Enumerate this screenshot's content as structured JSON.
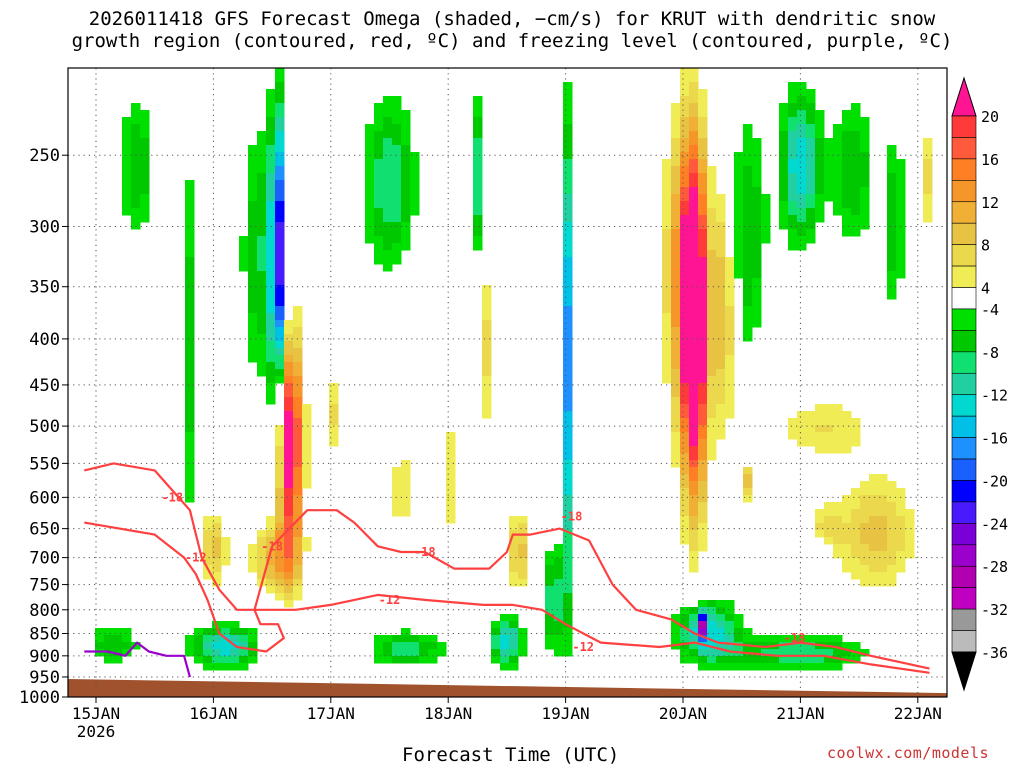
{
  "header": {
    "title_line1": "2026011418 GFS Forecast Omega (shaded, −cm/s) for KRUT with dendritic snow",
    "title_line2": "growth region (contoured, red, ºC) and freezing level (contoured, purple, ºC)"
  },
  "footer": {
    "xlabel": "Forecast Time (UTC)",
    "credit": "coolwx.com/models"
  },
  "colors": {
    "ground": "#a0522d",
    "contour_red": "#ff4040",
    "contour_purple": "#9900cc",
    "grid": "#555555"
  },
  "chart_data": {
    "type": "heatmap",
    "title": "2026011418 GFS Forecast Omega (shaded, −cm/s) for KRUT with dendritic snow growth region (contoured, red, ºC) and freezing level (contoured, purple, ºC)",
    "xlabel": "Forecast Time (UTC)",
    "ylabel": "",
    "y_axis": {
      "scale": "log",
      "range": [
        1000,
        200
      ],
      "ticks": [
        250,
        300,
        350,
        400,
        450,
        500,
        550,
        600,
        650,
        700,
        750,
        800,
        850,
        900,
        950,
        1000
      ]
    },
    "x_axis": {
      "range_days": [
        14.9,
        22.2
      ],
      "ticks": [
        "15JAN",
        "16JAN",
        "17JAN",
        "18JAN",
        "19JAN",
        "20JAN",
        "21JAN",
        "22JAN"
      ],
      "first_tick_year": "2026"
    },
    "grid": true,
    "colorbar": {
      "placement": "right",
      "labels": [
        20,
        16,
        12,
        8,
        4,
        -4,
        -8,
        -12,
        -16,
        -20,
        -24,
        -28,
        -32,
        -36
      ],
      "classes": [
        {
          "min": 20,
          "max": null,
          "color": "#ff1493"
        },
        {
          "min": 18,
          "max": 20,
          "color": "#ff3a3a"
        },
        {
          "min": 16,
          "max": 18,
          "color": "#ff5a3c"
        },
        {
          "min": 14,
          "max": 16,
          "color": "#ff7f24"
        },
        {
          "min": 12,
          "max": 14,
          "color": "#f5962a"
        },
        {
          "min": 10,
          "max": 12,
          "color": "#efb035"
        },
        {
          "min": 8,
          "max": 10,
          "color": "#e8c243"
        },
        {
          "min": 6,
          "max": 8,
          "color": "#ebd84c"
        },
        {
          "min": 4,
          "max": 6,
          "color": "#f0ec55"
        },
        {
          "min": -4,
          "max": 4,
          "color": "#ffffff"
        },
        {
          "min": -6,
          "max": -4,
          "color": "#00e000"
        },
        {
          "min": -8,
          "max": -6,
          "color": "#00c800"
        },
        {
          "min": -10,
          "max": -8,
          "color": "#10e070"
        },
        {
          "min": -12,
          "max": -10,
          "color": "#20d0a0"
        },
        {
          "min": -14,
          "max": -12,
          "color": "#00d8d0"
        },
        {
          "min": -16,
          "max": -14,
          "color": "#00c0e8"
        },
        {
          "min": -18,
          "max": -16,
          "color": "#1e90ff"
        },
        {
          "min": -20,
          "max": -18,
          "color": "#1a60ff"
        },
        {
          "min": -22,
          "max": -20,
          "color": "#0000ff"
        },
        {
          "min": -24,
          "max": -22,
          "color": "#4a1aff"
        },
        {
          "min": -26,
          "max": -24,
          "color": "#7a00d8"
        },
        {
          "min": -28,
          "max": -26,
          "color": "#9b00cc"
        },
        {
          "min": -30,
          "max": -28,
          "color": "#b000b0"
        },
        {
          "min": -32,
          "max": -30,
          "color": "#c000c0"
        },
        {
          "min": -34,
          "max": -32,
          "color": "#999999"
        },
        {
          "min": -36,
          "max": -34,
          "color": "#bbbbbb"
        },
        {
          "min": null,
          "max": -36,
          "color": "#000000"
        }
      ]
    },
    "omega_blobs": [
      {
        "day": 16.65,
        "p_top": 360,
        "p_bot": 760,
        "half_width_days": 0.14,
        "peak": 24
      },
      {
        "day": 16.52,
        "p_top": 620,
        "p_bot": 790,
        "half_width_days": 0.28,
        "peak": 10
      },
      {
        "day": 16.0,
        "p_top": 600,
        "p_bot": 780,
        "half_width_days": 0.15,
        "peak": 9
      },
      {
        "day": 17.0,
        "p_top": 420,
        "p_bot": 560,
        "half_width_days": 0.06,
        "peak": 8
      },
      {
        "day": 17.6,
        "p_top": 480,
        "p_bot": 720,
        "half_width_days": 0.08,
        "peak": 7
      },
      {
        "day": 18.3,
        "p_top": 290,
        "p_bot": 560,
        "half_width_days": 0.08,
        "peak": 8
      },
      {
        "day": 18.6,
        "p_top": 600,
        "p_bot": 790,
        "half_width_days": 0.1,
        "peak": 10
      },
      {
        "day": 18.05,
        "p_top": 430,
        "p_bot": 760,
        "half_width_days": 0.06,
        "peak": 8
      },
      {
        "day": 17.15,
        "p_top": 260,
        "p_bot": 460,
        "half_width_days": 0.05,
        "peak": 6
      },
      {
        "day": 15.45,
        "p_top": 720,
        "p_bot": 800,
        "half_width_days": 0.07,
        "peak": 5
      },
      {
        "day": 20.1,
        "p_top": 220,
        "p_bot": 700,
        "half_width_days": 0.14,
        "peak": 26
      },
      {
        "day": 20.0,
        "p_top": 200,
        "p_bot": 560,
        "half_width_days": 0.22,
        "peak": 12
      },
      {
        "day": 20.35,
        "p_top": 240,
        "p_bot": 560,
        "half_width_days": 0.12,
        "peak": 11
      },
      {
        "day": 21.2,
        "p_top": 450,
        "p_bot": 560,
        "half_width_days": 0.6,
        "peak": 6
      },
      {
        "day": 21.65,
        "p_top": 540,
        "p_bot": 800,
        "half_width_days": 0.45,
        "peak": 9
      },
      {
        "day": 21.2,
        "p_top": 600,
        "p_bot": 740,
        "half_width_days": 0.18,
        "peak": 7
      },
      {
        "day": 20.55,
        "p_top": 540,
        "p_bot": 620,
        "half_width_days": 0.05,
        "peak": 9
      },
      {
        "day": 22.1,
        "p_top": 220,
        "p_bot": 320,
        "half_width_days": 0.08,
        "peak": 7
      },
      {
        "day": 16.55,
        "p_top": 200,
        "p_bot": 560,
        "half_width_days": 0.08,
        "peak": -22
      },
      {
        "day": 16.4,
        "p_top": 200,
        "p_bot": 520,
        "half_width_days": 0.22,
        "peak": -8
      },
      {
        "day": 15.35,
        "p_top": 200,
        "p_bot": 330,
        "half_width_days": 0.2,
        "peak": -8
      },
      {
        "day": 15.8,
        "p_top": 200,
        "p_bot": 820,
        "half_width_days": 0.12,
        "peak": -7
      },
      {
        "day": 16.1,
        "p_top": 820,
        "p_bot": 940,
        "half_width_days": 0.35,
        "peak": -14
      },
      {
        "day": 15.15,
        "p_top": 820,
        "p_bot": 930,
        "half_width_days": 0.3,
        "peak": -8
      },
      {
        "day": 17.5,
        "p_top": 200,
        "p_bot": 360,
        "half_width_days": 0.3,
        "peak": -10
      },
      {
        "day": 17.65,
        "p_top": 830,
        "p_bot": 940,
        "half_width_days": 0.45,
        "peak": -9
      },
      {
        "day": 19.0,
        "p_top": 200,
        "p_bot": 880,
        "half_width_days": 0.05,
        "peak": -20
      },
      {
        "day": 18.9,
        "p_top": 650,
        "p_bot": 940,
        "half_width_days": 0.12,
        "peak": -10
      },
      {
        "day": 18.25,
        "p_top": 200,
        "p_bot": 360,
        "half_width_days": 0.1,
        "peak": -10
      },
      {
        "day": 18.5,
        "p_top": 800,
        "p_bot": 940,
        "half_width_days": 0.18,
        "peak": -14
      },
      {
        "day": 20.2,
        "p_top": 760,
        "p_bot": 940,
        "half_width_days": 0.35,
        "peak": -14
      },
      {
        "day": 20.15,
        "p_top": 800,
        "p_bot": 870,
        "half_width_days": 0.05,
        "peak": -20
      },
      {
        "day": 21.0,
        "p_top": 840,
        "p_bot": 950,
        "half_width_days": 0.75,
        "peak": -10
      },
      {
        "day": 20.55,
        "p_top": 200,
        "p_bot": 470,
        "half_width_days": 0.22,
        "peak": -8
      },
      {
        "day": 21.0,
        "p_top": 200,
        "p_bot": 330,
        "half_width_days": 0.22,
        "peak": -14
      },
      {
        "day": 21.45,
        "p_top": 200,
        "p_bot": 340,
        "half_width_days": 0.25,
        "peak": -8
      },
      {
        "day": 21.8,
        "p_top": 220,
        "p_bot": 400,
        "half_width_days": 0.12,
        "peak": -8
      },
      {
        "day": 21.2,
        "p_top": 650,
        "p_bot": 750,
        "half_width_days": 0.12,
        "peak": -8
      }
    ],
    "contours": [
      {
        "kind": "dendritic",
        "temp_c": -12,
        "points": [
          [
            14.9,
            560
          ],
          [
            15.15,
            550
          ],
          [
            15.5,
            560
          ],
          [
            15.8,
            620
          ],
          [
            15.9,
            700
          ],
          [
            16.05,
            760
          ],
          [
            16.2,
            800
          ],
          [
            16.7,
            800
          ],
          [
            17.0,
            790
          ],
          [
            17.4,
            770
          ],
          [
            17.8,
            780
          ],
          [
            18.3,
            790
          ],
          [
            18.55,
            790
          ],
          [
            18.8,
            800
          ],
          [
            19.0,
            830
          ],
          [
            19.3,
            870
          ],
          [
            19.8,
            880
          ],
          [
            20.1,
            870
          ],
          [
            20.4,
            890
          ],
          [
            20.8,
            900
          ],
          [
            21.2,
            900
          ],
          [
            21.6,
            920
          ],
          [
            22.1,
            940
          ]
        ]
      },
      {
        "kind": "dendritic",
        "temp_c": -18,
        "points": [
          [
            14.9,
            640
          ],
          [
            15.2,
            650
          ],
          [
            15.5,
            660
          ],
          [
            15.75,
            700
          ],
          [
            15.85,
            730
          ],
          [
            15.95,
            780
          ],
          [
            16.05,
            850
          ],
          [
            16.2,
            880
          ],
          [
            16.45,
            890
          ],
          [
            16.6,
            860
          ],
          [
            16.55,
            830
          ],
          [
            16.4,
            830
          ],
          [
            16.35,
            800
          ],
          [
            16.5,
            680
          ],
          [
            16.8,
            620
          ],
          [
            17.05,
            620
          ],
          [
            17.2,
            640
          ],
          [
            17.4,
            680
          ],
          [
            17.6,
            690
          ],
          [
            17.8,
            690
          ],
          [
            18.05,
            720
          ],
          [
            18.35,
            720
          ],
          [
            18.5,
            690
          ],
          [
            18.55,
            660
          ],
          [
            18.7,
            660
          ],
          [
            18.95,
            650
          ],
          [
            19.2,
            670
          ],
          [
            19.4,
            750
          ],
          [
            19.6,
            800
          ],
          [
            19.9,
            820
          ],
          [
            20.1,
            850
          ],
          [
            20.3,
            870
          ],
          [
            20.7,
            880
          ],
          [
            21.0,
            870
          ],
          [
            21.3,
            880
          ],
          [
            21.6,
            900
          ],
          [
            22.1,
            930
          ]
        ]
      },
      {
        "kind": "freezing",
        "temp_c": 0,
        "points": [
          [
            14.9,
            890
          ],
          [
            15.1,
            890
          ],
          [
            15.25,
            900
          ],
          [
            15.35,
            870
          ],
          [
            15.45,
            890
          ],
          [
            15.6,
            900
          ],
          [
            15.75,
            900
          ],
          [
            15.8,
            950
          ]
        ]
      }
    ],
    "contour_labels": [
      {
        "text": "-18",
        "day": 15.65,
        "p": 600
      },
      {
        "text": "-12",
        "day": 15.85,
        "p": 700
      },
      {
        "text": "-18",
        "day": 16.5,
        "p": 680
      },
      {
        "text": "-18",
        "day": 17.8,
        "p": 690
      },
      {
        "text": "-12",
        "day": 17.5,
        "p": 780
      },
      {
        "text": "-18",
        "day": 19.05,
        "p": 630
      },
      {
        "text": "-12",
        "day": 19.15,
        "p": 880
      },
      {
        "text": "-18",
        "day": 20.95,
        "p": 860
      }
    ],
    "ground": {
      "p_left": 955,
      "p_right": 990
    }
  }
}
